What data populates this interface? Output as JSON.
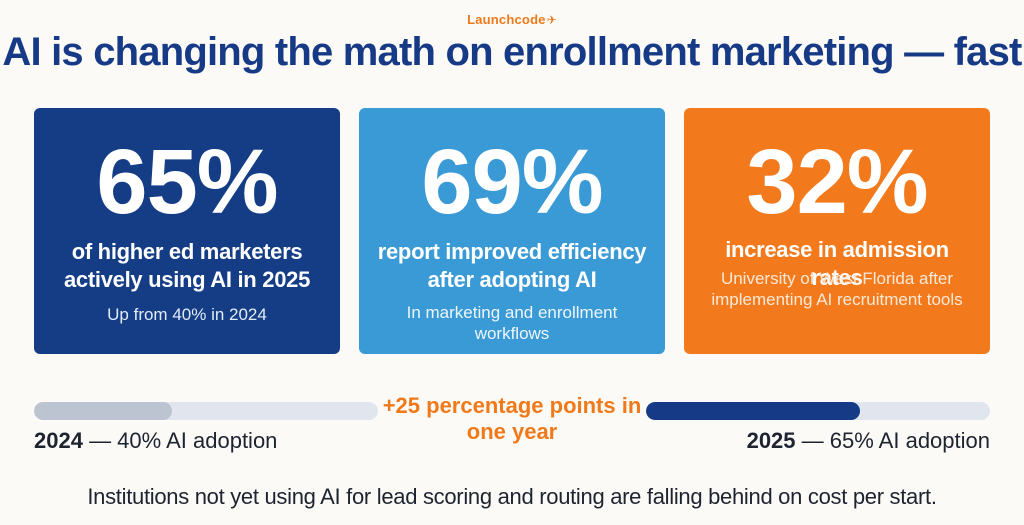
{
  "brand": {
    "name": "Launchcode",
    "mark": "✈"
  },
  "title": "AI is changing the math on enrollment marketing — fast",
  "stats": [
    {
      "value": "65%",
      "label": "of higher ed marketers actively using AI in 2025",
      "sub": "Up from 40% in 2024",
      "color": "#143d86"
    },
    {
      "value": "69%",
      "label": "report improved efficiency after adopting AI",
      "sub": "In marketing and enrollment workflows",
      "color": "#3a9ad6"
    },
    {
      "value": "32%",
      "label": "increase in admission rates",
      "sub": "University of West Florida after implementing AI recruitment tools",
      "color": "#f27a1c"
    }
  ],
  "comparison": {
    "left": {
      "year": "2024",
      "text": " — 40% AI adoption",
      "adoption_percent": 40
    },
    "right": {
      "year": "2025",
      "text": " — 65% AI adoption",
      "adoption_percent": 65
    },
    "delta": "+25 percentage points in one year"
  },
  "footer": "Institutions not yet using AI for lead scoring and routing are falling behind on cost per start.",
  "colors": {
    "navy": "#173a86",
    "blue": "#3a9ad6",
    "orange": "#f07a1a",
    "track": "#e1e5ee"
  }
}
